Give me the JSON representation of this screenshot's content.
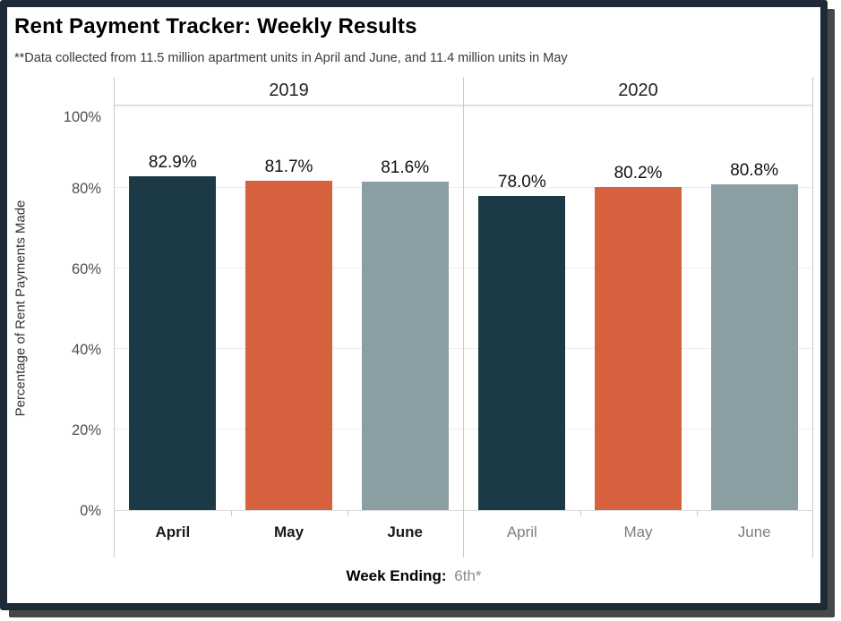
{
  "title": "Rent Payment Tracker: Weekly Results",
  "subtitle": "**Data collected from 11.5 million apartment units in April and June, and 11.4 million units in May",
  "footer": {
    "label": "Week Ending:",
    "value": "6th*"
  },
  "y_axis": {
    "title": "Percentage of Rent Payments Made",
    "ticks": [
      "0%",
      "20%",
      "40%",
      "60%",
      "80%",
      "100%"
    ],
    "tick_values": [
      0,
      20,
      40,
      60,
      80,
      100
    ]
  },
  "colors": {
    "april_bar": "#1b3a45",
    "may_bar": "#d5613f",
    "june_bar": "#8b9ea3",
    "frame_border": "#1e2a38",
    "frame_shadow": "#474747",
    "gridline": "#ededed",
    "panel_line": "#cbcbcb"
  },
  "chart_data": {
    "type": "bar",
    "title": "Rent Payment Tracker: Weekly Results",
    "subtitle": "**Data collected from 11.5 million apartment units in April and June, and 11.4 million units in May",
    "xlabel": "Week Ending: 6th*",
    "ylabel": "Percentage of Rent Payments Made",
    "ylim": [
      0,
      100
    ],
    "grid": true,
    "legend": false,
    "categories": [
      "April",
      "May",
      "June"
    ],
    "groups": [
      {
        "year": "2019",
        "values": [
          82.9,
          81.7,
          81.6
        ],
        "labels": [
          "82.9%",
          "81.7%",
          "81.6%"
        ]
      },
      {
        "year": "2020",
        "values": [
          78.0,
          80.2,
          80.8
        ],
        "labels": [
          "78.0%",
          "80.2%",
          "80.8%"
        ]
      }
    ],
    "bar_colors": [
      "#1b3a45",
      "#d5613f",
      "#8b9ea3"
    ]
  }
}
